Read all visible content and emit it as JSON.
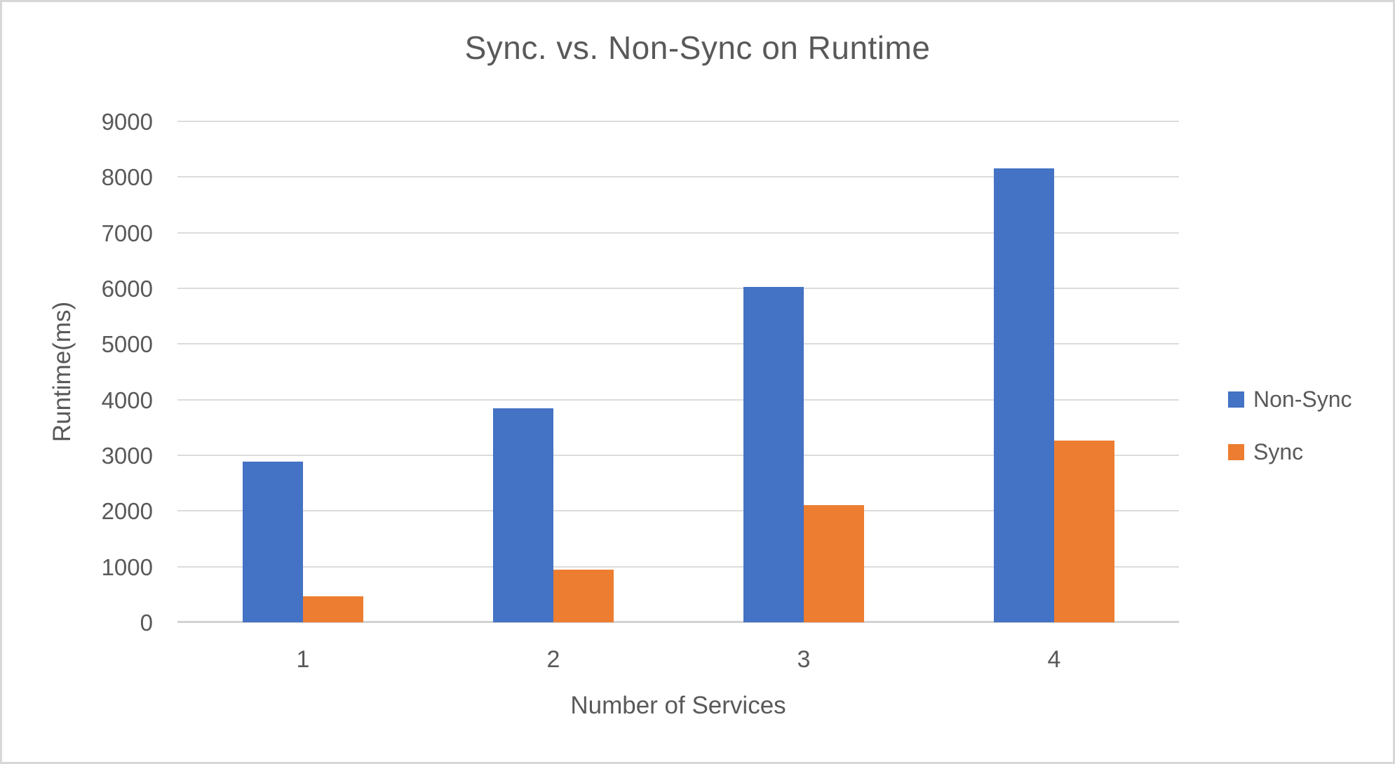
{
  "window": {
    "background_color": "#ffffff",
    "border_color": "#d7d7d7"
  },
  "chart_data": {
    "type": "bar",
    "title": "Sync. vs. Non-Sync on Runtime",
    "xlabel": "Number of Services",
    "ylabel": "Runtime(ms)",
    "categories": [
      "1",
      "2",
      "3",
      "4"
    ],
    "series": [
      {
        "name": "Non-Sync",
        "color": "#4472C4",
        "values": [
          2890,
          3850,
          6030,
          8160
        ]
      },
      {
        "name": "Sync",
        "color": "#ED7D31",
        "values": [
          470,
          940,
          2110,
          3260
        ]
      }
    ],
    "ylim": [
      0,
      9000
    ],
    "ytick_interval": 1000,
    "ytick_labels": [
      "0",
      "1000",
      "2000",
      "3000",
      "4000",
      "5000",
      "6000",
      "7000",
      "8000",
      "9000"
    ],
    "grid": true,
    "gridline_color": "#dcdcdc",
    "baseline_color": "#d2d2d2",
    "text_color": "#595959",
    "legend_position": "right"
  }
}
